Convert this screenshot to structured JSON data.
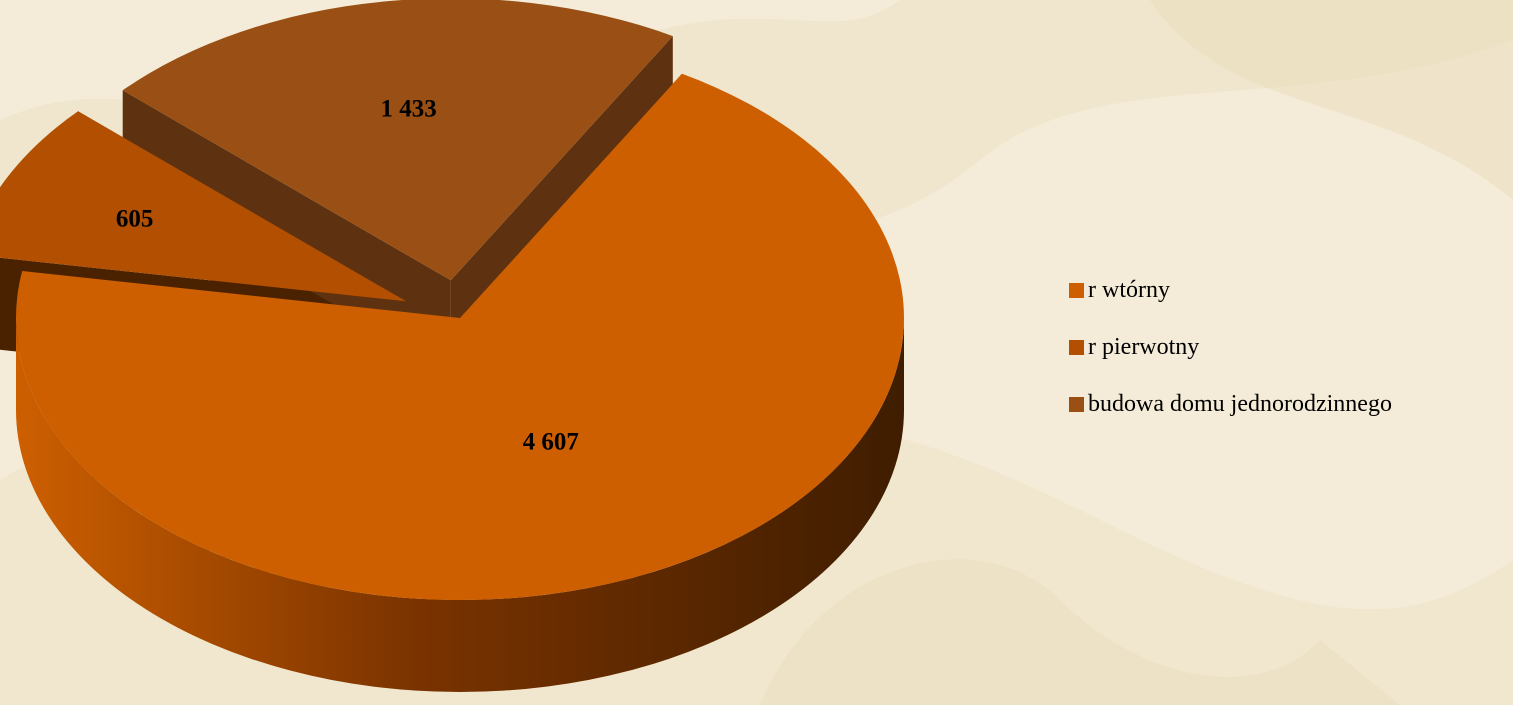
{
  "chart_data": {
    "type": "pie",
    "title": "",
    "values": [
      4607,
      605,
      1433
    ],
    "value_labels": [
      "4 607",
      "605",
      "1 433"
    ],
    "categories": [
      "r wtórny",
      "r pierwotny",
      "budowa domu jednorodzinnego"
    ],
    "colors": [
      "#cd5f00",
      "#b34f00",
      "#9a5014"
    ],
    "side_colors": [
      "#7a3300",
      "#4a2200",
      "#5e3210"
    ],
    "exploded": [
      false,
      true,
      true
    ],
    "style": "3d",
    "legend_position": "right"
  },
  "legend": {
    "items": [
      {
        "label": "r wtórny",
        "color": "#cd5f00"
      },
      {
        "label": "r pierwotny",
        "color": "#b34f00"
      },
      {
        "label": "budowa domu jednorodzinnego",
        "color": "#9a5014"
      }
    ]
  },
  "background_color": "#f4ecd8"
}
